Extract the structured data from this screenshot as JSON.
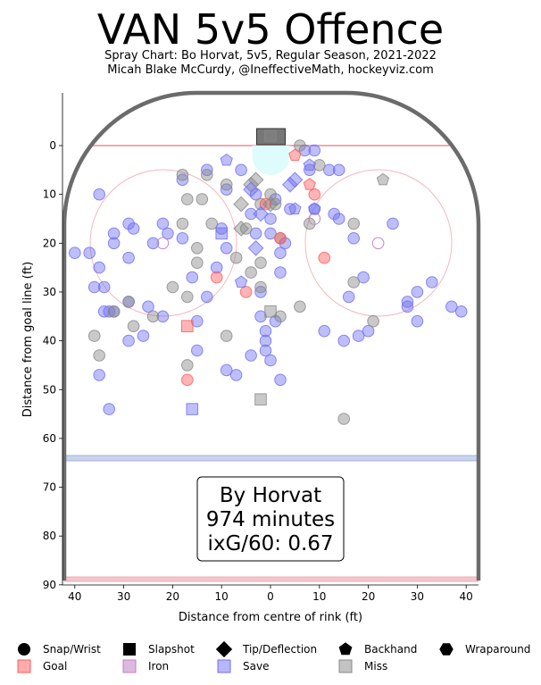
{
  "title": "VAN 5v5 Offence",
  "subtitle_line1": "Spray Chart: Bo Horvat, 5v5, Regular Season, 2021-2022",
  "subtitle_line2": "Micah Blake McCurdy, @IneffectiveMath, hockeyviz.com",
  "info_box": {
    "line1": "By Horvat",
    "line2": "974 minutes",
    "line3": "ixG/60: 0.67"
  },
  "chart_data": {
    "type": "scatter",
    "xlabel": "Distance from centre of rink (ft)",
    "ylabel": "Distance from goal line (ft)",
    "xlim": [
      -42.5,
      42.5
    ],
    "ylim": [
      -11,
      90
    ],
    "x_ticks": [
      {
        "value": -40,
        "label": "40"
      },
      {
        "value": -30,
        "label": "30"
      },
      {
        "value": -20,
        "label": "20"
      },
      {
        "value": -10,
        "label": "10"
      },
      {
        "value": 0,
        "label": "0"
      },
      {
        "value": 10,
        "label": "10"
      },
      {
        "value": 20,
        "label": "20"
      },
      {
        "value": 30,
        "label": "30"
      },
      {
        "value": 40,
        "label": "40"
      }
    ],
    "y_ticks": [
      0,
      10,
      20,
      30,
      40,
      50,
      60,
      70,
      80,
      90
    ],
    "y_inverted": true,
    "outcome_colors": {
      "goal": "#ff5a5a",
      "iron": "#c27fc2",
      "save": "#6f6ff2",
      "miss": "#888888"
    },
    "legend": {
      "shapes": [
        {
          "shape": "circle",
          "label": "Snap/Wrist"
        },
        {
          "shape": "square",
          "label": "Slapshot"
        },
        {
          "shape": "diamond",
          "label": "Tip/Deflection"
        },
        {
          "shape": "pentagon",
          "label": "Backhand"
        },
        {
          "shape": "hexagon",
          "label": "Wraparound"
        }
      ],
      "outcomes": [
        {
          "outcome": "goal",
          "label": "Goal"
        },
        {
          "outcome": "iron",
          "label": "Iron"
        },
        {
          "outcome": "save",
          "label": "Save"
        },
        {
          "outcome": "miss",
          "label": "Miss"
        }
      ]
    },
    "shots": [
      {
        "x": -40,
        "y": 22,
        "shape": "circle",
        "outcome": "save"
      },
      {
        "x": -37,
        "y": 22,
        "shape": "circle",
        "outcome": "save"
      },
      {
        "x": -36,
        "y": 29,
        "shape": "circle",
        "outcome": "save"
      },
      {
        "x": -35,
        "y": 10,
        "shape": "circle",
        "outcome": "save"
      },
      {
        "x": -35,
        "y": 25,
        "shape": "circle",
        "outcome": "save"
      },
      {
        "x": -34,
        "y": 29,
        "shape": "circle",
        "outcome": "save"
      },
      {
        "x": -34,
        "y": 34,
        "shape": "circle",
        "outcome": "save"
      },
      {
        "x": -33,
        "y": 34,
        "shape": "circle",
        "outcome": "save"
      },
      {
        "x": -32,
        "y": 34,
        "shape": "circle",
        "outcome": "save"
      },
      {
        "x": -32,
        "y": 18,
        "shape": "circle",
        "outcome": "save"
      },
      {
        "x": -32,
        "y": 20,
        "shape": "circle",
        "outcome": "save"
      },
      {
        "x": -29,
        "y": 16,
        "shape": "circle",
        "outcome": "save"
      },
      {
        "x": -28,
        "y": 17,
        "shape": "circle",
        "outcome": "save"
      },
      {
        "x": -29,
        "y": 23,
        "shape": "circle",
        "outcome": "save"
      },
      {
        "x": -29,
        "y": 32,
        "shape": "circle",
        "outcome": "save"
      },
      {
        "x": -29,
        "y": 40,
        "shape": "circle",
        "outcome": "save"
      },
      {
        "x": -26,
        "y": 39,
        "shape": "circle",
        "outcome": "save"
      },
      {
        "x": -25,
        "y": 33,
        "shape": "circle",
        "outcome": "save"
      },
      {
        "x": -24,
        "y": 20,
        "shape": "circle",
        "outcome": "save"
      },
      {
        "x": -22,
        "y": 16,
        "shape": "circle",
        "outcome": "save"
      },
      {
        "x": -21,
        "y": 18,
        "shape": "circle",
        "outcome": "save"
      },
      {
        "x": -22,
        "y": 35,
        "shape": "circle",
        "outcome": "save"
      },
      {
        "x": -18,
        "y": 7,
        "shape": "circle",
        "outcome": "save"
      },
      {
        "x": -18,
        "y": 19,
        "shape": "circle",
        "outcome": "save"
      },
      {
        "x": -16,
        "y": 27,
        "shape": "circle",
        "outcome": "save"
      },
      {
        "x": -15,
        "y": 36,
        "shape": "circle",
        "outcome": "save"
      },
      {
        "x": -15,
        "y": 42,
        "shape": "circle",
        "outcome": "save"
      },
      {
        "x": -13,
        "y": 5,
        "shape": "circle",
        "outcome": "save"
      },
      {
        "x": -13,
        "y": 31,
        "shape": "circle",
        "outcome": "save"
      },
      {
        "x": -11,
        "y": 25,
        "shape": "circle",
        "outcome": "save"
      },
      {
        "x": -10,
        "y": 17,
        "shape": "circle",
        "outcome": "save"
      },
      {
        "x": -9,
        "y": 9,
        "shape": "circle",
        "outcome": "save"
      },
      {
        "x": -9,
        "y": 21,
        "shape": "circle",
        "outcome": "save"
      },
      {
        "x": -9,
        "y": 46,
        "shape": "circle",
        "outcome": "save"
      },
      {
        "x": -7,
        "y": 47,
        "shape": "circle",
        "outcome": "save"
      },
      {
        "x": -6,
        "y": 5,
        "shape": "circle",
        "outcome": "save"
      },
      {
        "x": -4,
        "y": 14,
        "shape": "circle",
        "outcome": "save"
      },
      {
        "x": -4,
        "y": 43,
        "shape": "circle",
        "outcome": "save"
      },
      {
        "x": -3,
        "y": 10,
        "shape": "circle",
        "outcome": "save"
      },
      {
        "x": -3,
        "y": 18,
        "shape": "circle",
        "outcome": "save"
      },
      {
        "x": -2,
        "y": 30,
        "shape": "circle",
        "outcome": "save"
      },
      {
        "x": -2,
        "y": 35,
        "shape": "circle",
        "outcome": "save"
      },
      {
        "x": -1,
        "y": 38,
        "shape": "circle",
        "outcome": "save"
      },
      {
        "x": -1,
        "y": 40,
        "shape": "circle",
        "outcome": "save"
      },
      {
        "x": -1,
        "y": 42,
        "shape": "circle",
        "outcome": "save"
      },
      {
        "x": 0,
        "y": 15,
        "shape": "circle",
        "outcome": "save"
      },
      {
        "x": 0,
        "y": 18,
        "shape": "circle",
        "outcome": "save"
      },
      {
        "x": 0,
        "y": 44,
        "shape": "circle",
        "outcome": "save"
      },
      {
        "x": 1,
        "y": 11,
        "shape": "circle",
        "outcome": "save"
      },
      {
        "x": 1,
        "y": 36,
        "shape": "circle",
        "outcome": "save"
      },
      {
        "x": 2,
        "y": 22,
        "shape": "circle",
        "outcome": "save"
      },
      {
        "x": 2,
        "y": 26,
        "shape": "circle",
        "outcome": "save"
      },
      {
        "x": 2,
        "y": 48,
        "shape": "circle",
        "outcome": "save"
      },
      {
        "x": 3,
        "y": 20,
        "shape": "circle",
        "outcome": "save"
      },
      {
        "x": 4,
        "y": 13,
        "shape": "circle",
        "outcome": "save"
      },
      {
        "x": 7,
        "y": 1,
        "shape": "circle",
        "outcome": "save"
      },
      {
        "x": 8,
        "y": 5,
        "shape": "circle",
        "outcome": "save"
      },
      {
        "x": 9,
        "y": 1,
        "shape": "circle",
        "outcome": "save"
      },
      {
        "x": 9,
        "y": 13,
        "shape": "circle",
        "outcome": "save"
      },
      {
        "x": 12,
        "y": 5,
        "shape": "circle",
        "outcome": "save"
      },
      {
        "x": 13,
        "y": 14,
        "shape": "circle",
        "outcome": "save"
      },
      {
        "x": 14,
        "y": 15,
        "shape": "circle",
        "outcome": "save"
      },
      {
        "x": 14,
        "y": 5,
        "shape": "circle",
        "outcome": "save"
      },
      {
        "x": 11,
        "y": 38,
        "shape": "circle",
        "outcome": "save"
      },
      {
        "x": 15,
        "y": 40,
        "shape": "circle",
        "outcome": "save"
      },
      {
        "x": 16,
        "y": 31,
        "shape": "circle",
        "outcome": "save"
      },
      {
        "x": 17,
        "y": 19,
        "shape": "circle",
        "outcome": "save"
      },
      {
        "x": 18,
        "y": 39,
        "shape": "circle",
        "outcome": "save"
      },
      {
        "x": 19,
        "y": 27,
        "shape": "circle",
        "outcome": "save"
      },
      {
        "x": 20,
        "y": 38,
        "shape": "circle",
        "outcome": "save"
      },
      {
        "x": 25,
        "y": 16,
        "shape": "circle",
        "outcome": "save"
      },
      {
        "x": 28,
        "y": 32,
        "shape": "circle",
        "outcome": "save"
      },
      {
        "x": 28,
        "y": 33,
        "shape": "circle",
        "outcome": "save"
      },
      {
        "x": 30,
        "y": 30,
        "shape": "circle",
        "outcome": "save"
      },
      {
        "x": 30,
        "y": 36,
        "shape": "circle",
        "outcome": "save"
      },
      {
        "x": 33,
        "y": 28,
        "shape": "circle",
        "outcome": "save"
      },
      {
        "x": 37,
        "y": 33,
        "shape": "circle",
        "outcome": "save"
      },
      {
        "x": 39,
        "y": 34,
        "shape": "circle",
        "outcome": "save"
      },
      {
        "x": -33,
        "y": 54,
        "shape": "circle",
        "outcome": "save"
      },
      {
        "x": -35,
        "y": 47,
        "shape": "circle",
        "outcome": "save"
      },
      {
        "x": -36,
        "y": 39,
        "shape": "circle",
        "outcome": "miss"
      },
      {
        "x": -35,
        "y": 43,
        "shape": "circle",
        "outcome": "miss"
      },
      {
        "x": -32,
        "y": 34,
        "shape": "circle",
        "outcome": "miss"
      },
      {
        "x": -29,
        "y": 32,
        "shape": "circle",
        "outcome": "miss"
      },
      {
        "x": -28,
        "y": 37,
        "shape": "circle",
        "outcome": "miss"
      },
      {
        "x": -24,
        "y": 35,
        "shape": "circle",
        "outcome": "miss"
      },
      {
        "x": -20,
        "y": 29,
        "shape": "circle",
        "outcome": "miss"
      },
      {
        "x": -18,
        "y": 6,
        "shape": "circle",
        "outcome": "miss"
      },
      {
        "x": -18,
        "y": 16,
        "shape": "circle",
        "outcome": "miss"
      },
      {
        "x": -17,
        "y": 11,
        "shape": "circle",
        "outcome": "miss"
      },
      {
        "x": -17,
        "y": 31,
        "shape": "circle",
        "outcome": "miss"
      },
      {
        "x": -15,
        "y": 21,
        "shape": "circle",
        "outcome": "miss"
      },
      {
        "x": -15,
        "y": 24,
        "shape": "circle",
        "outcome": "miss"
      },
      {
        "x": -14,
        "y": 11,
        "shape": "circle",
        "outcome": "miss"
      },
      {
        "x": -13,
        "y": 6,
        "shape": "circle",
        "outcome": "miss"
      },
      {
        "x": -12,
        "y": 16,
        "shape": "circle",
        "outcome": "miss"
      },
      {
        "x": -9,
        "y": 8,
        "shape": "circle",
        "outcome": "miss"
      },
      {
        "x": -9,
        "y": 39,
        "shape": "circle",
        "outcome": "miss"
      },
      {
        "x": -7,
        "y": 23,
        "shape": "circle",
        "outcome": "miss"
      },
      {
        "x": -5,
        "y": 17,
        "shape": "circle",
        "outcome": "miss"
      },
      {
        "x": -4,
        "y": 26,
        "shape": "circle",
        "outcome": "miss"
      },
      {
        "x": -2,
        "y": 12,
        "shape": "circle",
        "outcome": "miss"
      },
      {
        "x": -2,
        "y": 24,
        "shape": "circle",
        "outcome": "miss"
      },
      {
        "x": -2,
        "y": 29,
        "shape": "circle",
        "outcome": "miss"
      },
      {
        "x": 0,
        "y": 10,
        "shape": "circle",
        "outcome": "miss"
      },
      {
        "x": 1,
        "y": 12,
        "shape": "circle",
        "outcome": "miss"
      },
      {
        "x": 2,
        "y": 19,
        "shape": "circle",
        "outcome": "miss"
      },
      {
        "x": 2,
        "y": 35,
        "shape": "circle",
        "outcome": "miss"
      },
      {
        "x": 6,
        "y": 0,
        "shape": "circle",
        "outcome": "miss"
      },
      {
        "x": 6,
        "y": 33,
        "shape": "circle",
        "outcome": "miss"
      },
      {
        "x": 8,
        "y": 16,
        "shape": "circle",
        "outcome": "miss"
      },
      {
        "x": 10,
        "y": 4,
        "shape": "circle",
        "outcome": "miss"
      },
      {
        "x": 17,
        "y": 16,
        "shape": "circle",
        "outcome": "miss"
      },
      {
        "x": 17,
        "y": 28,
        "shape": "circle",
        "outcome": "miss"
      },
      {
        "x": 21,
        "y": 36,
        "shape": "circle",
        "outcome": "miss"
      },
      {
        "x": 15,
        "y": 56,
        "shape": "circle",
        "outcome": "miss"
      },
      {
        "x": -17,
        "y": 45,
        "shape": "circle",
        "outcome": "miss"
      },
      {
        "x": -11,
        "y": 27,
        "shape": "circle",
        "outcome": "goal"
      },
      {
        "x": -5,
        "y": 30,
        "shape": "circle",
        "outcome": "goal"
      },
      {
        "x": -1,
        "y": 12,
        "shape": "circle",
        "outcome": "goal"
      },
      {
        "x": 2,
        "y": 19,
        "shape": "circle",
        "outcome": "goal"
      },
      {
        "x": 9,
        "y": 10,
        "shape": "circle",
        "outcome": "goal"
      },
      {
        "x": 11,
        "y": 23,
        "shape": "circle",
        "outcome": "goal"
      },
      {
        "x": -17,
        "y": 48,
        "shape": "circle",
        "outcome": "goal"
      },
      {
        "x": -22,
        "y": 20,
        "shape": "circle",
        "outcome": "iron"
      },
      {
        "x": 22,
        "y": 20,
        "shape": "circle",
        "outcome": "iron"
      },
      {
        "x": 9,
        "y": 15,
        "shape": "circle",
        "outcome": "iron"
      },
      {
        "x": 0,
        "y": -2,
        "shape": "square",
        "outcome": "miss"
      },
      {
        "x": 0,
        "y": 34,
        "shape": "square",
        "outcome": "miss"
      },
      {
        "x": -2,
        "y": 52,
        "shape": "square",
        "outcome": "miss"
      },
      {
        "x": -10,
        "y": 18,
        "shape": "square",
        "outcome": "save"
      },
      {
        "x": -16,
        "y": 54,
        "shape": "square",
        "outcome": "save"
      },
      {
        "x": -17,
        "y": 37,
        "shape": "square",
        "outcome": "goal"
      },
      {
        "x": -3,
        "y": 7,
        "shape": "diamond",
        "outcome": "miss"
      },
      {
        "x": -4,
        "y": 8,
        "shape": "diamond",
        "outcome": "miss"
      },
      {
        "x": -6,
        "y": 12,
        "shape": "diamond",
        "outcome": "miss"
      },
      {
        "x": -6,
        "y": 17,
        "shape": "diamond",
        "outcome": "miss"
      },
      {
        "x": -3,
        "y": 21,
        "shape": "diamond",
        "outcome": "save"
      },
      {
        "x": -4,
        "y": 9,
        "shape": "diamond",
        "outcome": "save"
      },
      {
        "x": 4,
        "y": 8,
        "shape": "diamond",
        "outcome": "save"
      },
      {
        "x": 5,
        "y": 7,
        "shape": "diamond",
        "outcome": "save"
      },
      {
        "x": 0,
        "y": 12,
        "shape": "diamond",
        "outcome": "miss"
      },
      {
        "x": -2,
        "y": 14,
        "shape": "diamond",
        "outcome": "save"
      },
      {
        "x": -9,
        "y": 3,
        "shape": "pentagon",
        "outcome": "save"
      },
      {
        "x": -6,
        "y": 28,
        "shape": "pentagon",
        "outcome": "save"
      },
      {
        "x": 5,
        "y": 13,
        "shape": "pentagon",
        "outcome": "save"
      },
      {
        "x": 9,
        "y": 13,
        "shape": "pentagon",
        "outcome": "save"
      },
      {
        "x": 8,
        "y": 4,
        "shape": "pentagon",
        "outcome": "save"
      },
      {
        "x": 23,
        "y": 7,
        "shape": "pentagon",
        "outcome": "miss"
      },
      {
        "x": 8,
        "y": 8,
        "shape": "pentagon",
        "outcome": "goal"
      },
      {
        "x": 5,
        "y": 2,
        "shape": "pentagon",
        "outcome": "goal"
      }
    ]
  }
}
